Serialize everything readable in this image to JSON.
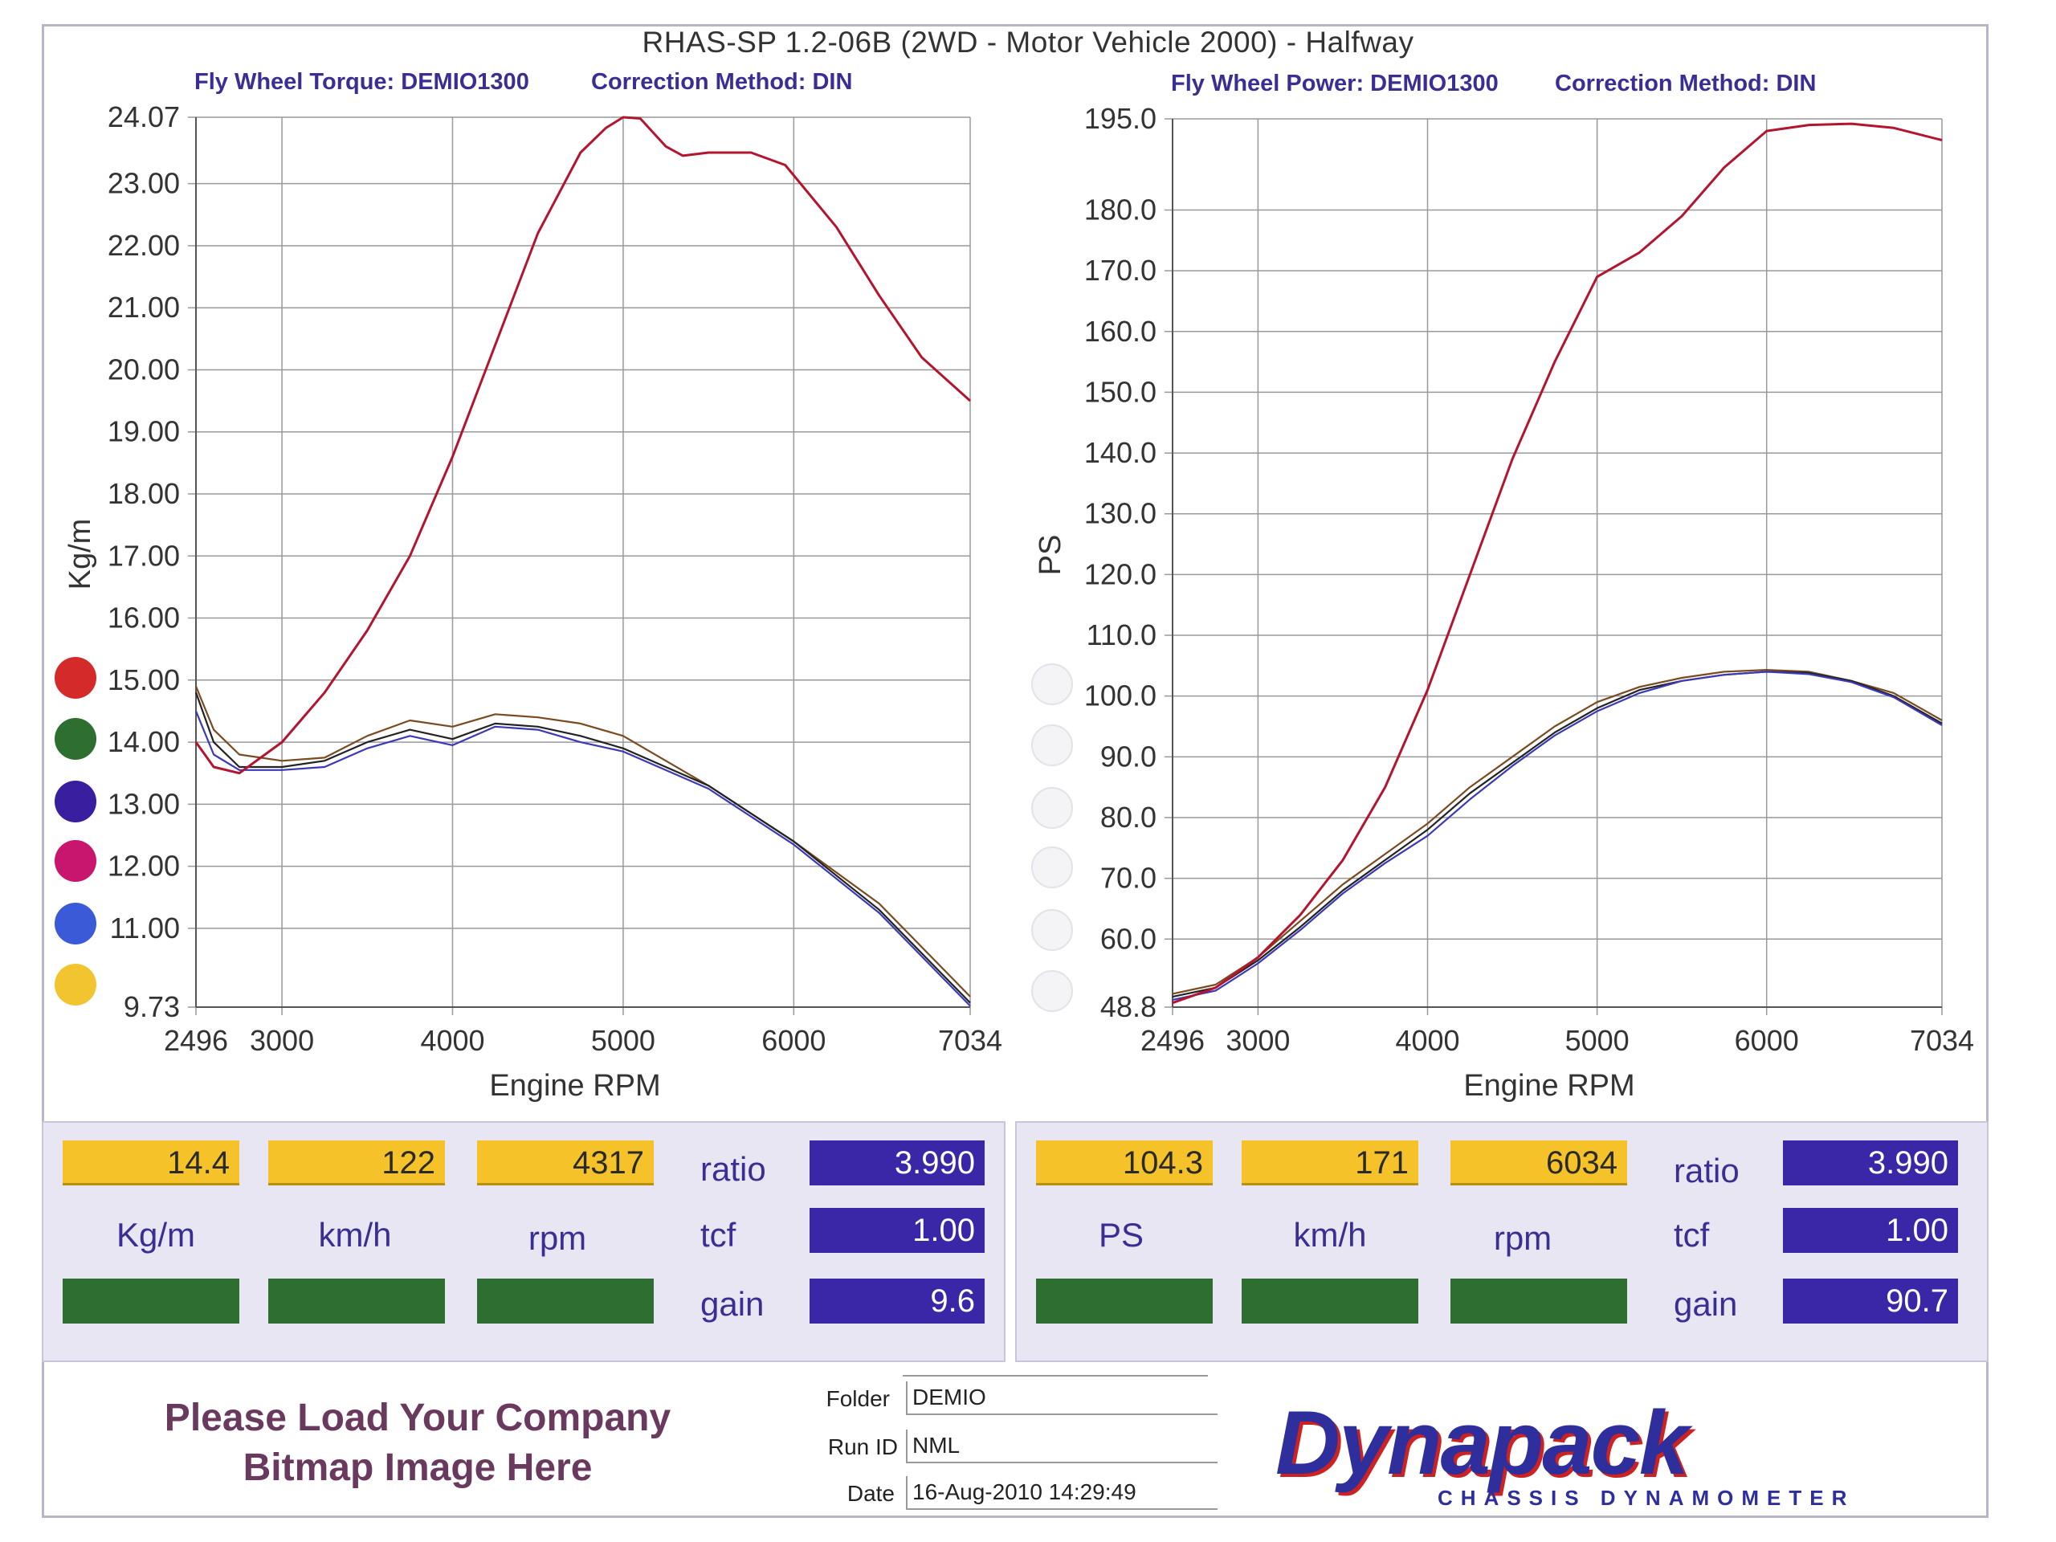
{
  "title": "RHAS-SP 1.2-06B  (2WD - Motor Vehicle 2000) - Halfway",
  "left_header": {
    "torque_label": "Fly Wheel Torque: DEMIO1300",
    "correction": "Correction Method: DIN"
  },
  "right_header": {
    "power_label": "Fly Wheel Power: DEMIO1300",
    "correction": "Correction Method: DIN"
  },
  "colors": {
    "red_run": "#b3142e",
    "grid": "#999999",
    "black_run": "#222222",
    "blue_run": "#3b39b8",
    "brown_run": "#7a4a20"
  },
  "swatch_colors": [
    "#d52a2a",
    "#2f6e31",
    "#3a1ea0",
    "#c8156e",
    "#3a5ad8",
    "#f2c530"
  ],
  "chart_data": [
    {
      "type": "line",
      "title": "Fly Wheel Torque: DEMIO1300",
      "xlabel": "Engine RPM",
      "ylabel": "Kg/m",
      "xlim": [
        2496,
        7034
      ],
      "ylim": [
        9.73,
        24.07
      ],
      "x_ticks": [
        "2496",
        "3000",
        "4000",
        "5000",
        "6000",
        "7034"
      ],
      "y_ticks": [
        "24.07",
        "23.00",
        "22.00",
        "21.00",
        "20.00",
        "19.00",
        "18.00",
        "17.00",
        "16.00",
        "15.00",
        "14.00",
        "13.00",
        "12.00",
        "11.00",
        "9.73"
      ],
      "series": [
        {
          "color": "#b3142e",
          "x": [
            2496,
            2600,
            2750,
            3000,
            3250,
            3500,
            3750,
            4000,
            4250,
            4500,
            4750,
            4900,
            5000,
            5100,
            5250,
            5350,
            5500,
            5750,
            5950,
            6250,
            6500,
            6750,
            7034
          ],
          "values": [
            14.0,
            13.6,
            13.5,
            14.0,
            14.8,
            15.8,
            17.0,
            18.6,
            20.4,
            22.2,
            23.5,
            23.9,
            24.07,
            24.05,
            23.6,
            23.45,
            23.5,
            23.5,
            23.3,
            22.3,
            21.2,
            20.2,
            19.5
          ]
        },
        {
          "color": "#7a4a20",
          "x": [
            2496,
            2600,
            2750,
            3000,
            3250,
            3500,
            3750,
            4000,
            4250,
            4500,
            4750,
            5000,
            5500,
            6000,
            6500,
            7034
          ],
          "values": [
            14.9,
            14.2,
            13.8,
            13.7,
            13.75,
            14.1,
            14.35,
            14.25,
            14.45,
            14.4,
            14.3,
            14.1,
            13.3,
            12.4,
            11.4,
            9.9
          ]
        },
        {
          "color": "#222222",
          "x": [
            2496,
            2600,
            2750,
            3000,
            3250,
            3500,
            3750,
            4000,
            4250,
            4500,
            4750,
            5000,
            5500,
            6000,
            6500,
            7034
          ],
          "values": [
            14.8,
            14.0,
            13.6,
            13.6,
            13.7,
            14.0,
            14.2,
            14.05,
            14.3,
            14.25,
            14.1,
            13.9,
            13.3,
            12.4,
            11.3,
            9.8
          ]
        },
        {
          "color": "#3b39b8",
          "x": [
            2496,
            2600,
            2750,
            3000,
            3250,
            3500,
            3750,
            4000,
            4250,
            4500,
            4750,
            5000,
            5500,
            6000,
            6500,
            7034
          ],
          "values": [
            14.5,
            13.8,
            13.55,
            13.55,
            13.6,
            13.9,
            14.1,
            13.95,
            14.25,
            14.2,
            14.0,
            13.85,
            13.25,
            12.35,
            11.25,
            9.75
          ]
        }
      ]
    },
    {
      "type": "line",
      "title": "Fly Wheel Power: DEMIO1300",
      "xlabel": "Engine RPM",
      "ylabel": "PS",
      "xlim": [
        2496,
        7034
      ],
      "ylim": [
        48.8,
        195.0
      ],
      "x_ticks": [
        "2496",
        "3000",
        "4000",
        "5000",
        "6000",
        "7034"
      ],
      "y_ticks": [
        "195.0",
        "180.0",
        "170.0",
        "160.0",
        "150.0",
        "140.0",
        "130.0",
        "120.0",
        "110.0",
        "100.0",
        "90.0",
        "80.0",
        "70.0",
        "60.0",
        "48.8"
      ],
      "series": [
        {
          "color": "#b3142e",
          "x": [
            2496,
            2750,
            3000,
            3250,
            3500,
            3750,
            4000,
            4250,
            4500,
            4750,
            5000,
            5250,
            5500,
            5750,
            6000,
            6250,
            6500,
            6750,
            7034
          ],
          "values": [
            49.5,
            52,
            57,
            64,
            73,
            85,
            101,
            120,
            139,
            155,
            169,
            173,
            179,
            187,
            193,
            194,
            194.2,
            193.5,
            191.5
          ]
        },
        {
          "color": "#7a4a20",
          "x": [
            2496,
            2750,
            3000,
            3250,
            3500,
            3750,
            4000,
            4250,
            4500,
            4750,
            5000,
            5250,
            5500,
            5750,
            6000,
            6250,
            6500,
            6750,
            7034
          ],
          "values": [
            51,
            52.5,
            57,
            63,
            69,
            74,
            79,
            85,
            90,
            95,
            99,
            101.5,
            103,
            104,
            104.3,
            104,
            102.5,
            100.5,
            96
          ]
        },
        {
          "color": "#222222",
          "x": [
            2496,
            2750,
            3000,
            3250,
            3500,
            3750,
            4000,
            4250,
            4500,
            4750,
            5000,
            5250,
            5500,
            5750,
            6000,
            6250,
            6500,
            6750,
            7034
          ],
          "values": [
            50.5,
            52,
            56.5,
            62,
            68,
            73,
            78,
            84,
            89,
            94,
            98,
            101,
            102.5,
            103.5,
            104,
            103.8,
            102.5,
            100,
            95.5
          ]
        },
        {
          "color": "#3b39b8",
          "x": [
            2496,
            2750,
            3000,
            3250,
            3500,
            3750,
            4000,
            4250,
            4500,
            4750,
            5000,
            5250,
            5500,
            5750,
            6000,
            6250,
            6500,
            6750,
            7034
          ],
          "values": [
            50,
            51.5,
            56,
            61.5,
            67.5,
            72.5,
            77,
            83,
            88.5,
            93.5,
            97.5,
            100.5,
            102.5,
            103.5,
            104,
            103.6,
            102.3,
            99.8,
            95.2
          ]
        }
      ]
    }
  ],
  "left_readout": {
    "value1": "14.4",
    "value2": "122",
    "value3": "4317",
    "unit1": "Kg/m",
    "unit2": "km/h",
    "unit3": "rpm",
    "ratio_label": "ratio",
    "ratio_value": "3.990",
    "tcf_label": "tcf",
    "tcf_value": "1.00",
    "gain_label": "gain",
    "gain_value": "9.6"
  },
  "right_readout": {
    "value1": "104.3",
    "value2": "171",
    "value3": "6034",
    "unit1": "PS",
    "unit2": "km/h",
    "unit3": "rpm",
    "ratio_label": "ratio",
    "ratio_value": "3.990",
    "tcf_label": "tcf",
    "tcf_value": "1.00",
    "gain_label": "gain",
    "gain_value": "90.7"
  },
  "footer": {
    "company_line1": "Please Load Your Company",
    "company_line2": "Bitmap Image Here",
    "folder_label": "Folder",
    "folder_value": "DEMIO",
    "runid_label": "Run ID",
    "runid_value": "NML",
    "date_label": "Date",
    "date_value": "16-Aug-2010  14:29:49",
    "logo": "Dynapack",
    "logo_sub": "CHASSIS  DYNAMOMETER"
  }
}
